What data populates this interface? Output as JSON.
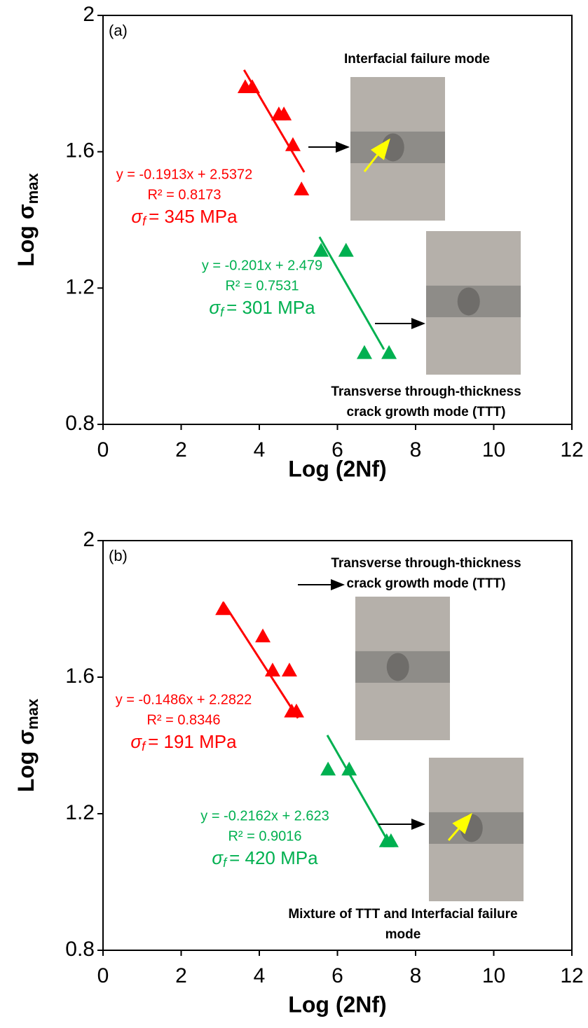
{
  "chart_data": [
    {
      "type": "scatter",
      "panel_label": "(a)",
      "xlabel": "Log (2Nf)",
      "ylabel": "Log σ",
      "ylabel_sub": "max",
      "xlim": [
        0,
        12
      ],
      "ylim": [
        0.8,
        2
      ],
      "xticks": [
        0,
        2,
        4,
        6,
        8,
        10,
        12
      ],
      "yticks": [
        0.8,
        1.2,
        1.6,
        2
      ],
      "series": [
        {
          "color": "#ff0000",
          "x": [
            3.64,
            3.82,
            4.5,
            4.63,
            4.86,
            5.08
          ],
          "values": [
            1.79,
            1.79,
            1.71,
            1.71,
            1.62,
            1.49
          ],
          "trendline": {
            "x": [
              3.61,
              5.15
            ],
            "values": [
              1.84,
              1.54
            ]
          },
          "equation": "y = -0.1913x + 2.5372",
          "r2": "R² = 0.8173",
          "sigma": "σ",
          "sigma_sub": "f",
          "strength": "= 345 MPa"
        },
        {
          "color": "#00b050",
          "x": [
            5.58,
            6.22,
            6.69,
            7.32
          ],
          "values": [
            1.31,
            1.31,
            1.01,
            1.01
          ],
          "trendline": {
            "x": [
              5.54,
              7.19
            ],
            "values": [
              1.35,
              1.02
            ]
          },
          "equation": "y = -0.201x + 2.479",
          "r2": "R² = 0.7531",
          "sigma": "σ",
          "sigma_sub": "f",
          "strength": "= 301 MPa"
        }
      ],
      "photo_captions": [
        [
          "Interfacial failure mode"
        ],
        [
          "Transverse through-thickness",
          "crack growth mode (TTT)"
        ]
      ]
    },
    {
      "type": "scatter",
      "panel_label": "(b)",
      "xlabel": "Log (2Nf)",
      "ylabel": "Log σ",
      "ylabel_sub": "max",
      "xlim": [
        0,
        12
      ],
      "ylim": [
        0.8,
        2
      ],
      "xticks": [
        0,
        2,
        4,
        6,
        8,
        10,
        12
      ],
      "yticks": [
        0.8,
        1.2,
        1.6,
        2
      ],
      "series": [
        {
          "color": "#ff0000",
          "x": [
            3.07,
            4.09,
            4.34,
            4.77,
            4.83,
            4.95
          ],
          "values": [
            1.8,
            1.72,
            1.62,
            1.62,
            1.5,
            1.5
          ],
          "trendline": {
            "x": [
              3.07,
              4.99
            ],
            "values": [
              1.82,
              1.48
            ]
          },
          "equation": "y = -0.1486x + 2.2822",
          "r2": "R² = 0.8346",
          "sigma": "σ",
          "sigma_sub": "f",
          "strength": "= 191 MPa"
        },
        {
          "color": "#00b050",
          "x": [
            5.76,
            6.3,
            7.26,
            7.37
          ],
          "values": [
            1.33,
            1.33,
            1.12,
            1.12
          ],
          "trendline": {
            "x": [
              5.74,
              7.34
            ],
            "values": [
              1.43,
              1.11
            ]
          },
          "equation": "y = -0.2162x + 2.623",
          "r2": "R² = 0.9016",
          "sigma": "σ",
          "sigma_sub": "f",
          "strength": "= 420 MPa"
        }
      ],
      "photo_captions": [
        [
          "Transverse through-thickness",
          "crack growth mode (TTT)"
        ],
        [
          "Mixture of TTT and Interfacial failure",
          "mode"
        ]
      ]
    }
  ]
}
